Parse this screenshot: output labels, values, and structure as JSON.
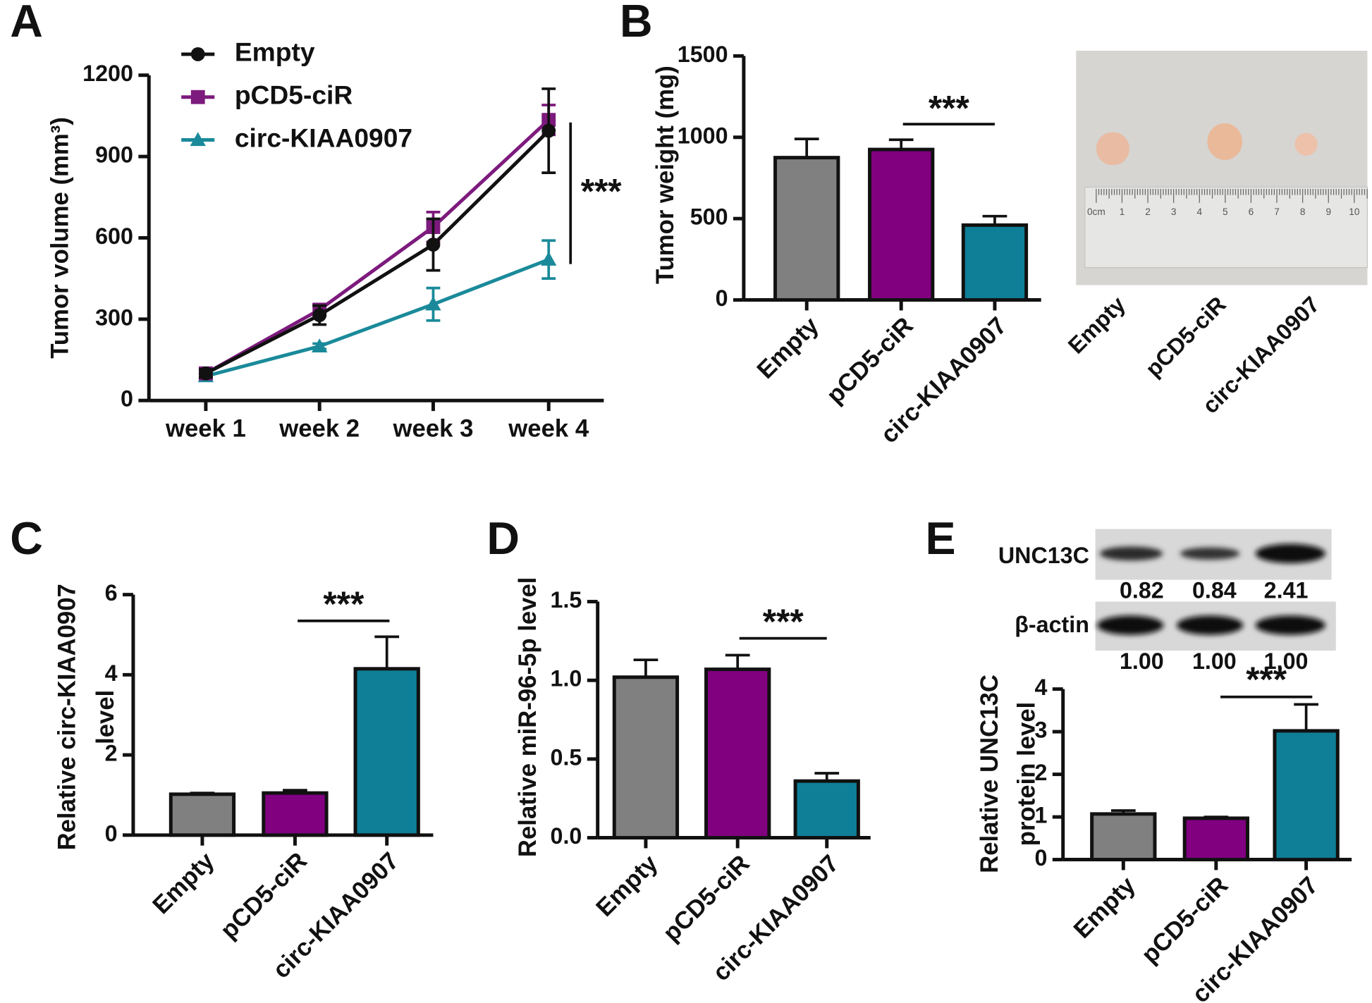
{
  "chart_data": [
    {
      "type": "line",
      "panel_label": "A",
      "y_label": [
        "Tumor volume (mm³)"
      ],
      "categories": [
        "week 1",
        "week 2",
        "week 3",
        "week 4"
      ],
      "series": [
        {
          "name": "Empty",
          "color": "#111111",
          "marker": "circle",
          "values": [
            100,
            315,
            575,
            995
          ],
          "errors": [
            15,
            35,
            95,
            155
          ]
        },
        {
          "name": "pCD5-ciR",
          "color": "#7d1a7d",
          "marker": "square",
          "values": [
            100,
            335,
            640,
            1035
          ],
          "errors": [
            10,
            20,
            55,
            55
          ]
        },
        {
          "name": "circ-KIAA0907",
          "color": "#1a8a9a",
          "marker": "triangle",
          "values": [
            90,
            200,
            355,
            520
          ],
          "errors": [
            10,
            10,
            60,
            70
          ]
        }
      ],
      "ylim": [
        0,
        1200
      ],
      "yticks": [
        0,
        300,
        600,
        900,
        1200
      ],
      "annotation": "***"
    },
    {
      "type": "bar",
      "panel_label": "B",
      "y_label": [
        "Tumor weight (mg)"
      ],
      "categories": [
        "Empty",
        "pCD5-ciR",
        "circ-KIAA0907"
      ],
      "values": [
        875,
        925,
        460
      ],
      "errors": [
        115,
        60,
        55
      ],
      "colors": [
        "#808080",
        "#800080",
        "#0e7f96"
      ],
      "ylim": [
        0,
        1500
      ],
      "yticks": [
        0,
        500,
        1000,
        1500
      ],
      "annotation": "***",
      "photo": {
        "labels": [
          "Empty",
          "pCD5-ciR",
          "circ-KIAA0907"
        ],
        "ruler_labels": [
          "0cm",
          "1",
          "2",
          "3",
          "4",
          "5",
          "6",
          "7",
          "8",
          "9",
          "10"
        ]
      }
    },
    {
      "type": "bar",
      "panel_label": "C",
      "y_label": [
        "Relative circ-KIAA0907",
        "level"
      ],
      "categories": [
        "Empty",
        "pCD5-ciR",
        "circ-KIAA0907"
      ],
      "values": [
        1.02,
        1.05,
        4.15
      ],
      "errors": [
        0.03,
        0.07,
        0.8
      ],
      "colors": [
        "#808080",
        "#800080",
        "#0e7f96"
      ],
      "ylim": [
        0,
        6
      ],
      "yticks": [
        0,
        2,
        4,
        6
      ],
      "annotation": "***"
    },
    {
      "type": "bar",
      "panel_label": "D",
      "y_label": [
        "Relative miR-96-5p level"
      ],
      "categories": [
        "Empty",
        "pCD5-ciR",
        "circ-KIAA0907"
      ],
      "values": [
        1.02,
        1.07,
        0.36
      ],
      "errors": [
        0.11,
        0.09,
        0.05
      ],
      "colors": [
        "#808080",
        "#800080",
        "#0e7f96"
      ],
      "ylim": [
        0,
        1.5
      ],
      "yticks": [
        {
          "value": 0,
          "label": "0.0"
        },
        0.5,
        {
          "value": 1,
          "label": "1.0"
        },
        1.5
      ],
      "annotation": "***"
    },
    {
      "type": "bar",
      "panel_label": "E",
      "y_label": [
        "Relative UNC13C",
        "protein level"
      ],
      "categories": [
        "Empty",
        "pCD5-ciR",
        "circ-KIAA0907"
      ],
      "values": [
        1.07,
        0.97,
        3.02
      ],
      "errors": [
        0.08,
        0.03,
        0.62
      ],
      "colors": [
        "#808080",
        "#800080",
        "#0e7f96"
      ],
      "ylim": [
        0,
        4
      ],
      "yticks": [
        0,
        1,
        2,
        3,
        4
      ],
      "annotation": "***",
      "blot": {
        "rows": [
          {
            "label": "UNC13C",
            "values": [
              "0.82",
              "0.84",
              "2.41"
            ]
          },
          {
            "label": "β-actin",
            "values": [
              "1.00",
              "1.00",
              "1.00"
            ]
          }
        ]
      }
    }
  ]
}
